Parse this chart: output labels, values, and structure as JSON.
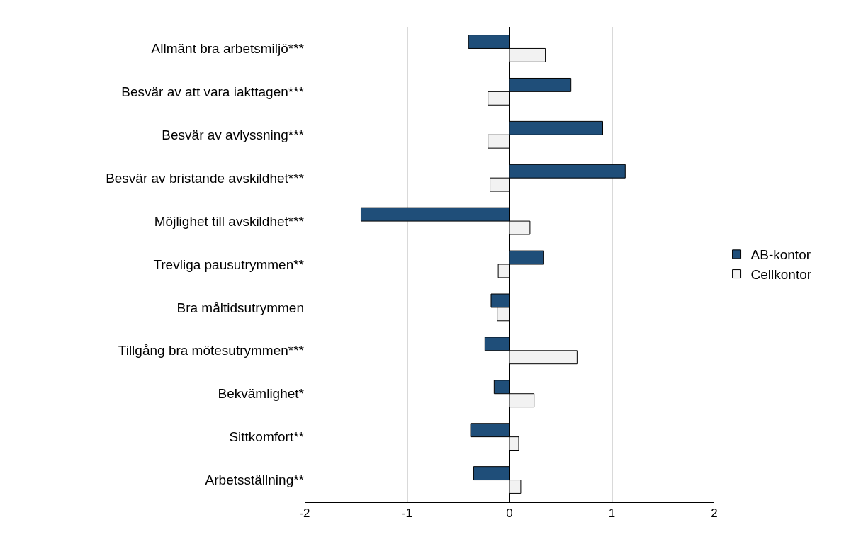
{
  "chart_data": {
    "type": "bar",
    "orientation": "horizontal",
    "categories": [
      "Allmänt bra arbetsmiljö***",
      "Besvär av att vara iakttagen***",
      "Besvär av avlyssning***",
      "Besvär av bristande avskildhet***",
      "Möjlighet till avskildhet***",
      "Trevliga pausutrymmen**",
      "Bra måltidsutrymmen",
      "Tillgång bra mötesutrymmen***",
      "Bekvämlighet*",
      "Sittkomfort**",
      "Arbetsställning**"
    ],
    "series": [
      {
        "name": "AB-kontor",
        "color": "#1f4e79",
        "values": [
          -0.4,
          0.6,
          0.91,
          1.13,
          -1.45,
          0.33,
          -0.18,
          -0.24,
          -0.15,
          -0.38,
          -0.35
        ]
      },
      {
        "name": "Cellkontor",
        "color": "#f2f2f2",
        "values": [
          0.35,
          -0.21,
          -0.21,
          -0.19,
          0.2,
          -0.11,
          -0.12,
          0.66,
          0.24,
          0.09,
          0.11
        ]
      }
    ],
    "xlim": [
      -2,
      2
    ],
    "xticks": [
      -2,
      -1,
      0,
      1,
      2
    ],
    "grid": "x",
    "legend": "right"
  }
}
